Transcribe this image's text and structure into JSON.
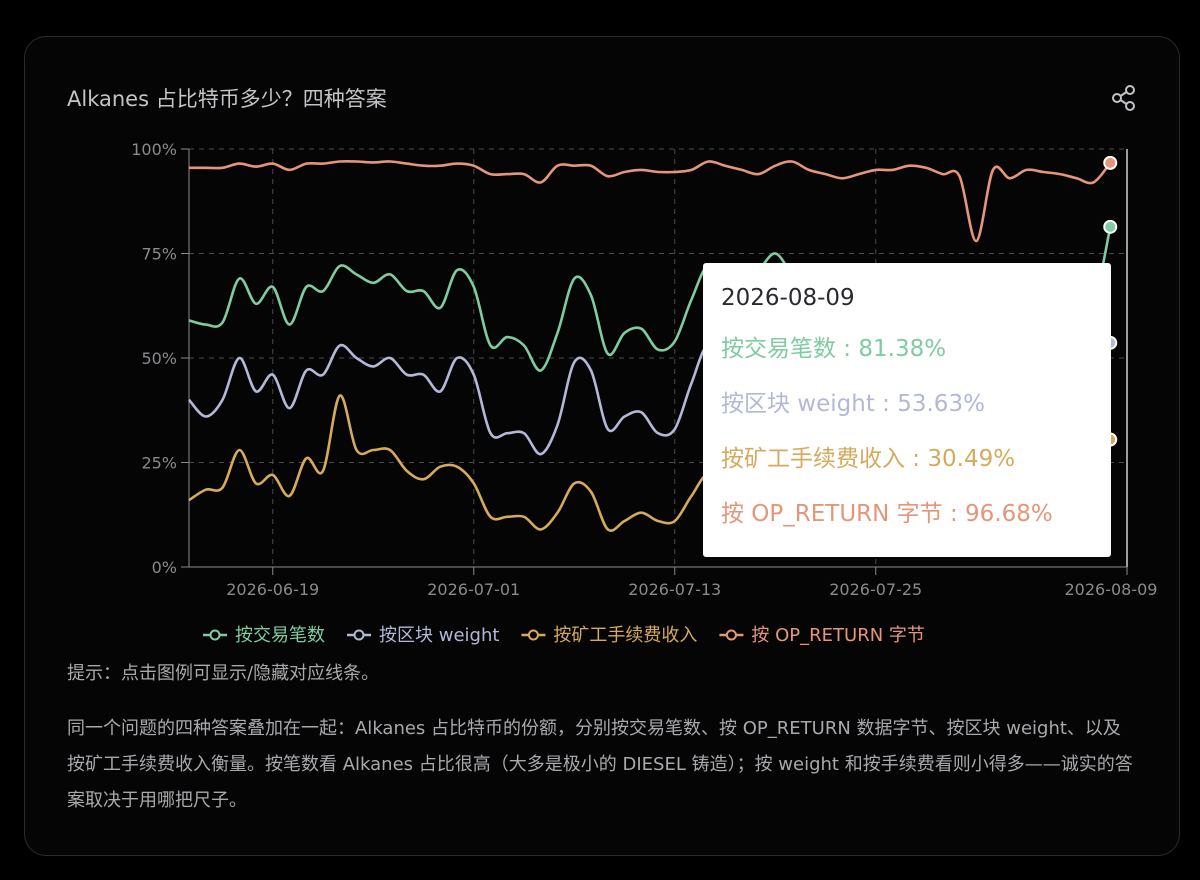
{
  "title": "Alkanes 占比特币多少？四种答案",
  "hint": "提示：点击图例可显示/隐藏对应线条。",
  "description": "同一个问题的四种答案叠加在一起：Alkanes 占比特币的份额，分别按交易笔数、按 OP_RETURN 数据字节、按区块 weight、以及按矿工手续费收入衡量。按笔数看 Alkanes 占比很高（大多是极小的 DIESEL 铸造）；按 weight 和按手续费看则小得多——诚实的答案取决于用哪把尺子。",
  "tooltip": {
    "date": "2026-08-09",
    "rows": [
      {
        "label": "按交易笔数 : 81.38%",
        "color": "#7fcca0"
      },
      {
        "label": "按区块 weight : 53.63%",
        "color": "#b3b8d6"
      },
      {
        "label": "按矿工手续费收入 : 30.49%",
        "color": "#d6aa5c"
      },
      {
        "label": "按 OP_RETURN 字节 : 96.68%",
        "color": "#e5967a"
      }
    ]
  },
  "chart_data": {
    "type": "line",
    "x_start": "2026-06-14",
    "x_end": "2026-08-09",
    "xticks": [
      "2026-06-19",
      "2026-07-01",
      "2026-07-13",
      "2026-07-25",
      "2026-08-09"
    ],
    "yticks": [
      "0%",
      "25%",
      "50%",
      "75%",
      "100%"
    ],
    "ylim": [
      0,
      100
    ],
    "grid": true,
    "legend": "bottom",
    "series": [
      {
        "name": "按交易笔数",
        "color": "#7fcca0",
        "points": [
          [
            0,
            59
          ],
          [
            1,
            58
          ],
          [
            2,
            58.5
          ],
          [
            3,
            69
          ],
          [
            4,
            63
          ],
          [
            5,
            67
          ],
          [
            6,
            58
          ],
          [
            7,
            67
          ],
          [
            8,
            66
          ],
          [
            9,
            72
          ],
          [
            10,
            70
          ],
          [
            11,
            68
          ],
          [
            12,
            70
          ],
          [
            13,
            66
          ],
          [
            14,
            66
          ],
          [
            15,
            62
          ],
          [
            16,
            71
          ],
          [
            17,
            67
          ],
          [
            18,
            53
          ],
          [
            19,
            55
          ],
          [
            20,
            53
          ],
          [
            21,
            47
          ],
          [
            22,
            56
          ],
          [
            23,
            69
          ],
          [
            24,
            65
          ],
          [
            25,
            51
          ],
          [
            26,
            56
          ],
          [
            27,
            57
          ],
          [
            28,
            52
          ],
          [
            29,
            54
          ],
          [
            30,
            64
          ],
          [
            31,
            72
          ],
          [
            32,
            65
          ],
          [
            33,
            68
          ],
          [
            34,
            71
          ],
          [
            35,
            75
          ],
          [
            36,
            70
          ],
          [
            37,
            66
          ],
          [
            38,
            68
          ],
          [
            39,
            70
          ],
          [
            40,
            64
          ],
          [
            41,
            66
          ],
          [
            42,
            68
          ],
          [
            43,
            65
          ],
          [
            44,
            72
          ],
          [
            45,
            64
          ],
          [
            46,
            66
          ],
          [
            47,
            62
          ],
          [
            48,
            67
          ],
          [
            49,
            63
          ],
          [
            50,
            65
          ],
          [
            51,
            62
          ],
          [
            52,
            64
          ],
          [
            53,
            62
          ],
          [
            54,
            63
          ],
          [
            55,
            81.38
          ]
        ]
      },
      {
        "name": "按区块 weight",
        "color": "#b3b8d6",
        "points": [
          [
            0,
            40
          ],
          [
            1,
            36
          ],
          [
            2,
            40
          ],
          [
            3,
            50
          ],
          [
            4,
            42
          ],
          [
            5,
            46
          ],
          [
            6,
            38
          ],
          [
            7,
            47
          ],
          [
            8,
            46
          ],
          [
            9,
            53
          ],
          [
            10,
            50
          ],
          [
            11,
            48
          ],
          [
            12,
            50
          ],
          [
            13,
            46
          ],
          [
            14,
            46
          ],
          [
            15,
            42
          ],
          [
            16,
            50
          ],
          [
            17,
            46
          ],
          [
            18,
            32
          ],
          [
            19,
            32
          ],
          [
            20,
            32
          ],
          [
            21,
            27
          ],
          [
            22,
            34
          ],
          [
            23,
            49
          ],
          [
            24,
            47
          ],
          [
            25,
            33
          ],
          [
            26,
            36
          ],
          [
            27,
            37
          ],
          [
            28,
            32
          ],
          [
            29,
            33
          ],
          [
            30,
            44
          ],
          [
            31,
            53
          ],
          [
            32,
            44
          ],
          [
            33,
            47
          ],
          [
            34,
            50
          ],
          [
            35,
            54
          ],
          [
            36,
            48
          ],
          [
            37,
            44
          ],
          [
            38,
            46
          ],
          [
            39,
            48
          ],
          [
            40,
            42
          ],
          [
            41,
            44
          ],
          [
            42,
            46
          ],
          [
            43,
            44
          ],
          [
            44,
            50
          ],
          [
            45,
            44
          ],
          [
            46,
            45
          ],
          [
            47,
            40
          ],
          [
            48,
            45
          ],
          [
            49,
            41
          ],
          [
            50,
            43
          ],
          [
            51,
            40
          ],
          [
            52,
            42
          ],
          [
            53,
            40
          ],
          [
            54,
            39
          ],
          [
            55,
            53.63
          ]
        ]
      },
      {
        "name": "按矿工手续费收入",
        "color": "#d6aa5c",
        "points": [
          [
            0,
            16
          ],
          [
            1,
            18.5
          ],
          [
            2,
            19
          ],
          [
            3,
            28
          ],
          [
            4,
            20
          ],
          [
            5,
            22
          ],
          [
            6,
            17
          ],
          [
            7,
            26
          ],
          [
            8,
            23
          ],
          [
            9,
            41
          ],
          [
            10,
            28
          ],
          [
            11,
            28
          ],
          [
            12,
            28
          ],
          [
            13,
            23
          ],
          [
            14,
            21
          ],
          [
            15,
            24
          ],
          [
            16,
            24
          ],
          [
            17,
            20
          ],
          [
            18,
            12
          ],
          [
            19,
            12
          ],
          [
            20,
            12
          ],
          [
            21,
            9
          ],
          [
            22,
            13
          ],
          [
            23,
            20
          ],
          [
            24,
            18
          ],
          [
            25,
            9
          ],
          [
            26,
            11
          ],
          [
            27,
            13
          ],
          [
            28,
            11
          ],
          [
            29,
            11
          ],
          [
            30,
            17
          ],
          [
            31,
            22
          ],
          [
            32,
            15
          ],
          [
            33,
            18
          ],
          [
            34,
            20
          ],
          [
            35,
            24
          ],
          [
            36,
            18
          ],
          [
            37,
            14
          ],
          [
            38,
            17
          ],
          [
            39,
            19
          ],
          [
            40,
            15
          ],
          [
            41,
            17
          ],
          [
            42,
            19
          ],
          [
            43,
            16
          ],
          [
            44,
            22
          ],
          [
            45,
            16
          ],
          [
            46,
            17
          ],
          [
            47,
            13
          ],
          [
            48,
            16
          ],
          [
            49,
            13
          ],
          [
            50,
            15
          ],
          [
            51,
            12
          ],
          [
            52,
            13
          ],
          [
            53,
            11
          ],
          [
            54,
            14
          ],
          [
            55,
            30.49
          ]
        ]
      },
      {
        "name": "按 OP_RETURN 字节",
        "color": "#e5967a",
        "points": [
          [
            0,
            95.5
          ],
          [
            1,
            95.5
          ],
          [
            2,
            95.5
          ],
          [
            3,
            96.5
          ],
          [
            4,
            95.8
          ],
          [
            5,
            96.5
          ],
          [
            6,
            95
          ],
          [
            7,
            96.5
          ],
          [
            8,
            96.5
          ],
          [
            9,
            97
          ],
          [
            10,
            97
          ],
          [
            11,
            96.8
          ],
          [
            12,
            97
          ],
          [
            13,
            96.5
          ],
          [
            14,
            96
          ],
          [
            15,
            96
          ],
          [
            16,
            96.5
          ],
          [
            17,
            96
          ],
          [
            18,
            94
          ],
          [
            19,
            94
          ],
          [
            20,
            94
          ],
          [
            21,
            92
          ],
          [
            22,
            96
          ],
          [
            23,
            96
          ],
          [
            24,
            96
          ],
          [
            25,
            93.5
          ],
          [
            26,
            94.5
          ],
          [
            27,
            95
          ],
          [
            28,
            94.5
          ],
          [
            29,
            94.5
          ],
          [
            30,
            95
          ],
          [
            31,
            97
          ],
          [
            32,
            96
          ],
          [
            33,
            95
          ],
          [
            34,
            94
          ],
          [
            35,
            96
          ],
          [
            36,
            97
          ],
          [
            37,
            95
          ],
          [
            38,
            94
          ],
          [
            39,
            93
          ],
          [
            40,
            94
          ],
          [
            41,
            95
          ],
          [
            42,
            95
          ],
          [
            43,
            96
          ],
          [
            44,
            95.5
          ],
          [
            45,
            94
          ],
          [
            46,
            93.5
          ],
          [
            47,
            78
          ],
          [
            48,
            95
          ],
          [
            49,
            93
          ],
          [
            50,
            95
          ],
          [
            51,
            94.5
          ],
          [
            52,
            94
          ],
          [
            53,
            93
          ],
          [
            54,
            92
          ],
          [
            55,
            96.68
          ]
        ]
      }
    ]
  }
}
